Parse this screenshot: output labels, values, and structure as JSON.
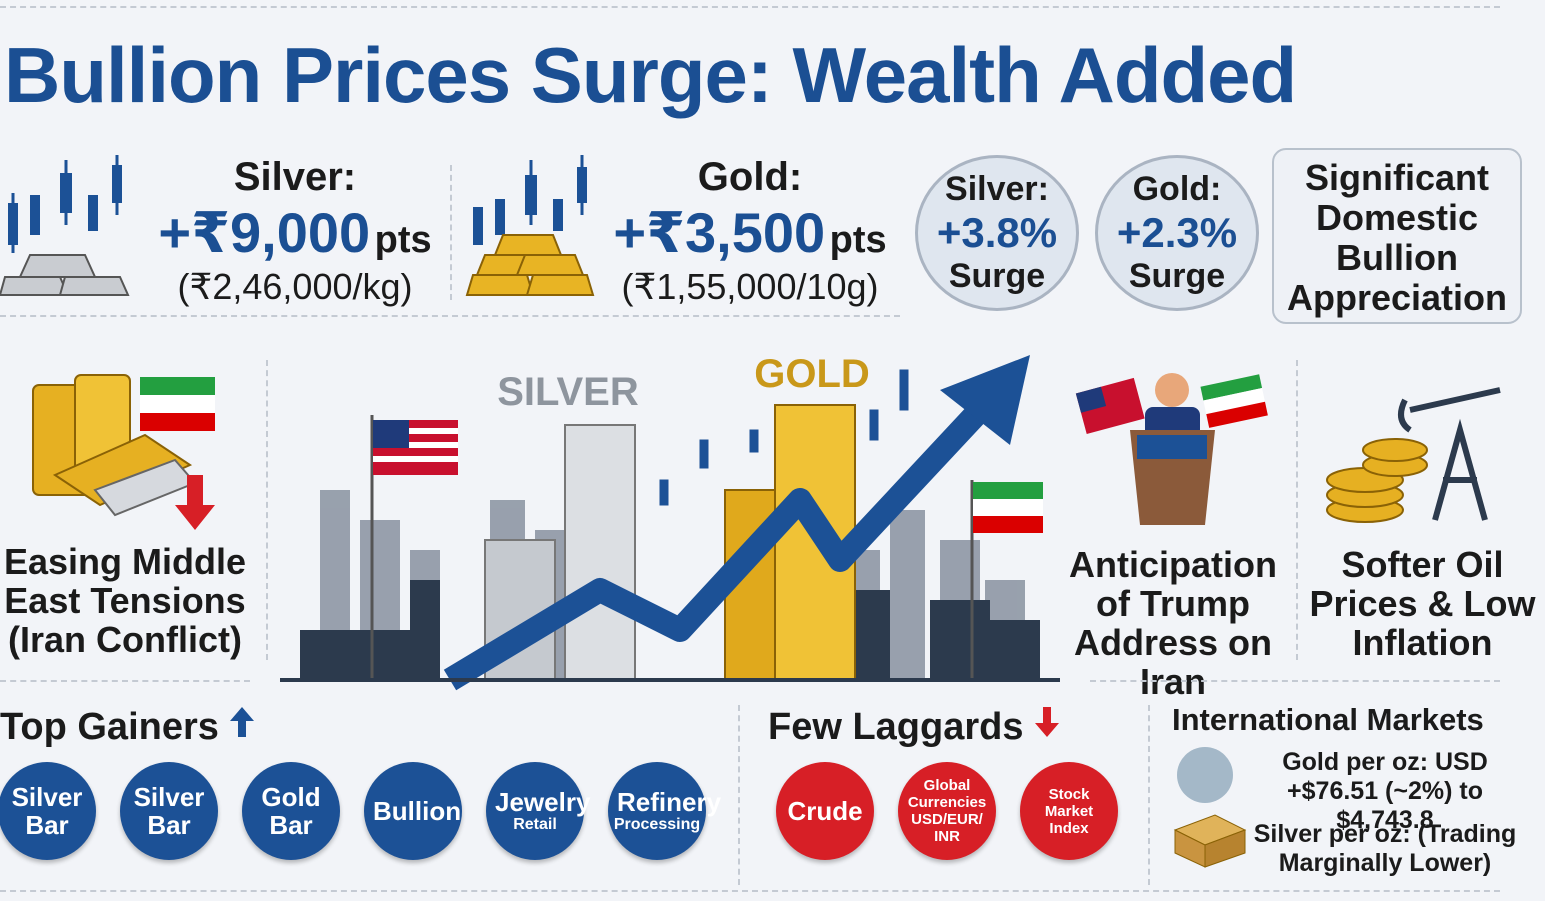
{
  "header": {
    "title": "Bullion Prices Surge: Wealth Added"
  },
  "price_moves": [
    {
      "label": "Silver:",
      "change": "+₹9,000",
      "unit": "pts",
      "price": "(₹2,46,000/kg)"
    },
    {
      "label": "Gold:",
      "change": "+₹3,500",
      "unit": "pts",
      "price": "(₹1,55,000/10g)"
    }
  ],
  "surges": [
    {
      "label": "Silver:",
      "percent": "+3.8%",
      "word": "Surge"
    },
    {
      "label": "Gold:",
      "percent": "+2.3%",
      "word": "Surge"
    }
  ],
  "highlight": "Significant Domestic Bullion Appreciation",
  "scene": {
    "silver_label": "SILVER",
    "gold_label": "GOLD"
  },
  "drivers": [
    "Easing Middle East Tensions (Iran Conflict)",
    "Anticipation of Trump Address on Iran",
    "Softer Oil Prices & Low Inflation"
  ],
  "top_gainers": {
    "title": "Top Gainers",
    "items": [
      {
        "name": "Silver Bar"
      },
      {
        "name": "Silver Bar"
      },
      {
        "name": "Gold Bar"
      },
      {
        "name": "Bullion"
      },
      {
        "name": "Jewelry",
        "sub": "Retail"
      },
      {
        "name": "Refinery",
        "sub": "Processing"
      }
    ]
  },
  "laggards": {
    "title": "Few Laggards",
    "items": [
      "Crude",
      "Global Currencies USD/EUR/ INR",
      "Stock Market Index"
    ]
  },
  "international": {
    "title": "International Markets",
    "gold": "Gold per oz: USD +$76.51 (~2%) to $4,743.8",
    "silver": "Silver per oz: (Trading Marginally Lower)"
  }
}
